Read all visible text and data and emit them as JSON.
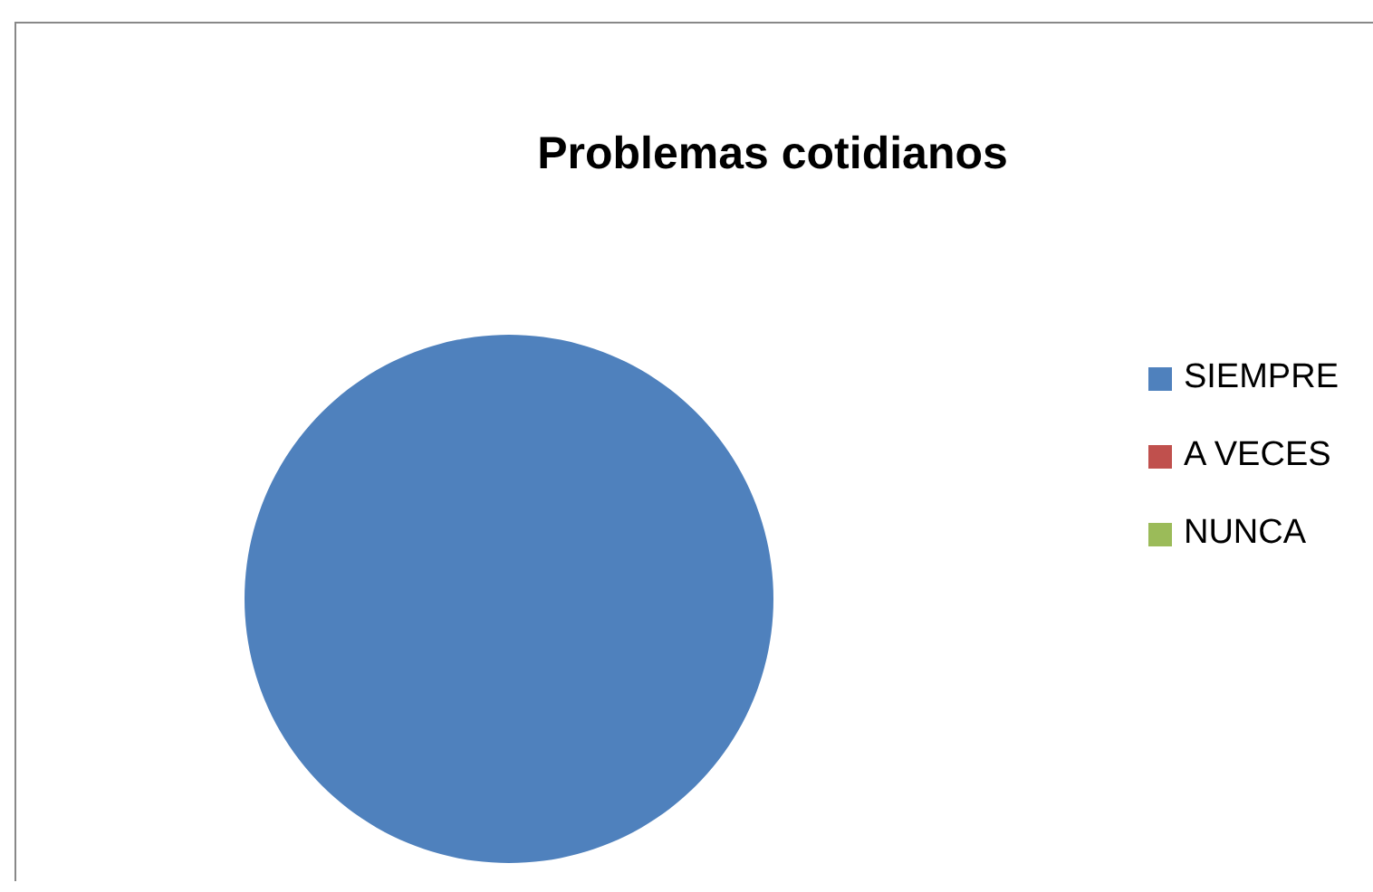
{
  "chart_data": {
    "type": "pie",
    "title": "Problemas cotidianos",
    "categories": [
      "SIEMPRE",
      "A VECES",
      "NUNCA"
    ],
    "values": [
      100,
      0,
      0
    ],
    "colors": [
      "#4f81bd",
      "#c0504d",
      "#9bbb59"
    ],
    "legend": "right"
  }
}
